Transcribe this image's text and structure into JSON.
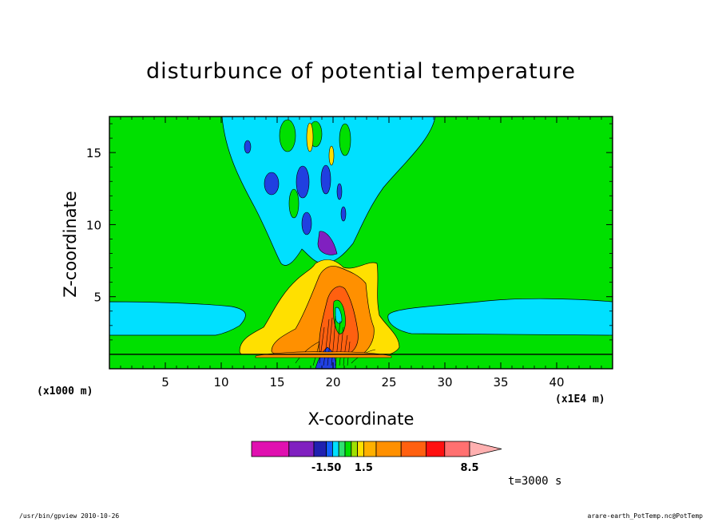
{
  "chart_data": {
    "type": "heatmap",
    "title": "disturbunce of potential temperature",
    "xlabel": "X-coordinate",
    "ylabel": "Z-coordinate",
    "x_unit_label": "(x1000 m)",
    "x_scale_label": "(x1E4 m)",
    "xlim": [
      0,
      45
    ],
    "ylim": [
      0,
      17.5
    ],
    "xticks": [
      "5",
      "10",
      "15",
      "20",
      "25",
      "30",
      "35",
      "40"
    ],
    "yticks": [
      "5",
      "10",
      "15"
    ],
    "xtick_values": [
      5,
      10,
      15,
      20,
      25,
      30,
      35,
      40
    ],
    "ytick_values": [
      5,
      10,
      15
    ],
    "horizontal_line_y": 1.0,
    "colorbar": {
      "levels": [
        -5,
        -3.5,
        -2,
        -1.5,
        -1,
        -0.5,
        0,
        0.5,
        1,
        1.5,
        2,
        3.5,
        5,
        6.5,
        8.5,
        10
      ],
      "colors": [
        "#e010b0",
        "#8020c0",
        "#2020b0",
        "#1060ff",
        "#00e0ff",
        "#30e070",
        "#00e000",
        "#a0e000",
        "#ffe000",
        "#ffb000",
        "#ff9000",
        "#ff6010",
        "#ff1010",
        "#ff7070",
        "#ffb0b0"
      ],
      "tick_labels": [
        "-1.50",
        "1.5",
        "8.5"
      ],
      "tick_values": [
        -1.5,
        1.5,
        8.5
      ]
    },
    "time_label": "t=3000 s",
    "grid": false
  },
  "colors": {
    "background_field": "#00e000",
    "cool_anomaly": "#00e0ff",
    "strong_cool": "#2040e0",
    "warm": "#ffe000",
    "warmer": "#ff9000",
    "hot": "#ff6010"
  },
  "footer": {
    "left": "/usr/bin/gpview  2010-10-26",
    "right": "arare-earth_PotTemp.nc@PotTemp"
  }
}
